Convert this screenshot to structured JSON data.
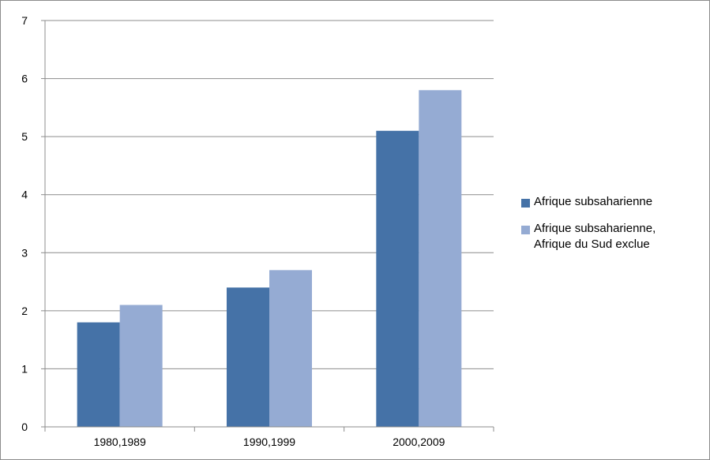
{
  "chart_data": {
    "type": "bar",
    "categories": [
      "1980,1989",
      "1990,1999",
      "2000,2009"
    ],
    "series": [
      {
        "name": "Afrique subsaharienne",
        "values": [
          1.8,
          2.4,
          5.1
        ],
        "color": "#4572a7"
      },
      {
        "name": "Afrique subsaharienne, Afrique du Sud exclue",
        "values": [
          2.1,
          2.7,
          5.8
        ],
        "color": "#95abd3"
      }
    ],
    "legend": [
      {
        "lines": [
          "Afrique subsaharienne"
        ],
        "color": "#4572a7"
      },
      {
        "lines": [
          "Afrique subsaharienne,",
          "Afrique du Sud exclue"
        ],
        "color": "#95abd3"
      }
    ],
    "yticks": [
      "0",
      "1",
      "2",
      "3",
      "4",
      "5",
      "6",
      "7"
    ],
    "ylim": [
      0,
      7
    ],
    "grid": true,
    "legend_position": "right",
    "title": "",
    "xlabel": "",
    "ylabel": ""
  }
}
